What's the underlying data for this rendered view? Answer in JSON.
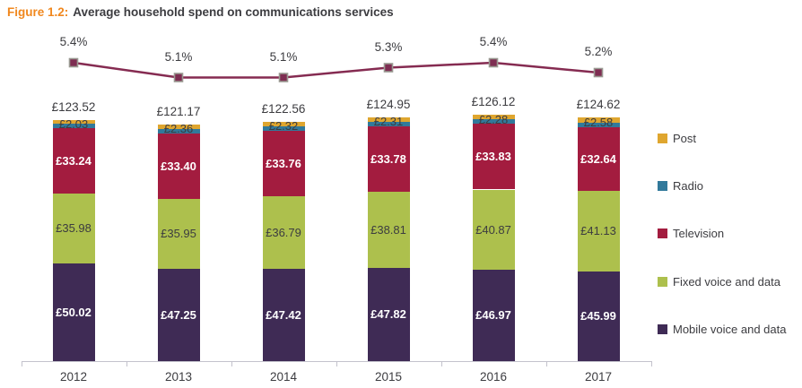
{
  "title": {
    "figure_label": "Figure 1.2:",
    "text": "Average household spend on communications services"
  },
  "chart_data": {
    "type": "bar",
    "stacked": true,
    "categories": [
      "2012",
      "2013",
      "2014",
      "2015",
      "2016",
      "2017"
    ],
    "series": [
      {
        "name": "Mobile voice and data",
        "color": "#3F2B55",
        "values": [
          50.02,
          47.25,
          47.42,
          47.82,
          46.97,
          45.99
        ],
        "display_labels": [
          "£50.02",
          "£47.25",
          "£47.42",
          "£47.82",
          "£46.97",
          "£45.99"
        ],
        "label_style": "white",
        "label_position": "center"
      },
      {
        "name": "Fixed voice and data",
        "color": "#ADC04D",
        "values": [
          35.98,
          35.95,
          36.79,
          38.81,
          40.87,
          41.13
        ],
        "display_labels": [
          "£35.98",
          "£35.95",
          "£36.79",
          "£38.81",
          "£40.87",
          "£41.13"
        ],
        "label_style": "dark",
        "label_position": "center"
      },
      {
        "name": "Television",
        "color": "#A31C3F",
        "values": [
          33.24,
          33.4,
          33.76,
          33.78,
          33.83,
          32.64
        ],
        "display_labels": [
          "£33.24",
          "£33.40",
          "£33.76",
          "£33.78",
          "£33.83",
          "£32.64"
        ],
        "label_style": "white",
        "label_position": "center"
      },
      {
        "name": "Radio",
        "color": "#31799B",
        "values": [
          2.25,
          2.21,
          2.27,
          2.23,
          2.17,
          2.28
        ],
        "estimated_from_totals": true
      },
      {
        "name": "Post",
        "color": "#DFA62F",
        "values": [
          2.03,
          2.36,
          2.32,
          2.31,
          2.28,
          2.58
        ],
        "display_labels": [
          "£2.03",
          "£2.36",
          "£2.32",
          "£2.31",
          "£2.28",
          "£2.58"
        ],
        "label_style": "dark",
        "label_position": "straddle-top"
      }
    ],
    "totals": [
      123.52,
      121.17,
      122.56,
      124.95,
      126.12,
      124.62
    ],
    "totals_display": [
      "£123.52",
      "£121.17",
      "£122.56",
      "£124.95",
      "£126.12",
      "£124.62"
    ],
    "overlay_line": {
      "values": [
        5.4,
        5.1,
        5.1,
        5.3,
        5.4,
        5.2
      ],
      "display_labels": [
        "5.4%",
        "5.1%",
        "5.1%",
        "5.3%",
        "5.4%",
        "5.2%"
      ],
      "color": "#852B51",
      "marker_fill": "#7E2D52",
      "marker_border": "#9A9A92"
    },
    "value_axis_visible": false,
    "legend_position": "right"
  },
  "x_axis": {
    "labels": [
      "2012",
      "2013",
      "2014",
      "2015",
      "2016",
      "2017"
    ]
  },
  "legend": {
    "items": [
      {
        "label": "Post",
        "color": "#DFA62F"
      },
      {
        "label": "Radio",
        "color": "#31799B"
      },
      {
        "label": "Television",
        "color": "#A31C3F"
      },
      {
        "label": "Fixed voice and data",
        "color": "#ADC04D"
      },
      {
        "label": "Mobile voice and data",
        "color": "#3F2B55"
      }
    ]
  },
  "colors": {
    "title_accent": "#F0871D",
    "text_dark": "#3C3C40",
    "axis": "#C3C2CC",
    "background": "#FFFFFF"
  }
}
